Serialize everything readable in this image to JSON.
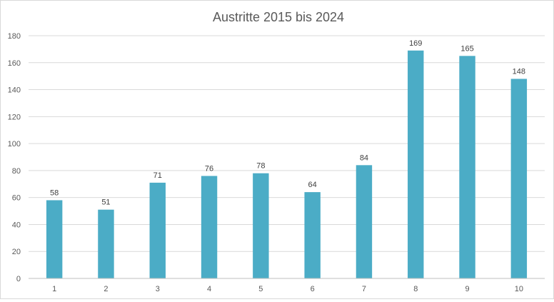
{
  "chart_data": {
    "type": "bar",
    "title": "Austritte 2015 bis 2024",
    "xlabel": "",
    "ylabel": "",
    "categories": [
      "1",
      "2",
      "3",
      "4",
      "5",
      "6",
      "7",
      "8",
      "9",
      "10"
    ],
    "values": [
      58,
      51,
      71,
      76,
      78,
      64,
      84,
      169,
      165,
      148
    ],
    "ylim": [
      0,
      180
    ],
    "yticks": [
      0,
      20,
      40,
      60,
      80,
      100,
      120,
      140,
      160,
      180
    ],
    "grid": true,
    "legend": "none",
    "data_labels": true,
    "colors": {
      "bar": "#4bacc6",
      "grid": "#d9d9d9",
      "text": "#595959"
    }
  }
}
